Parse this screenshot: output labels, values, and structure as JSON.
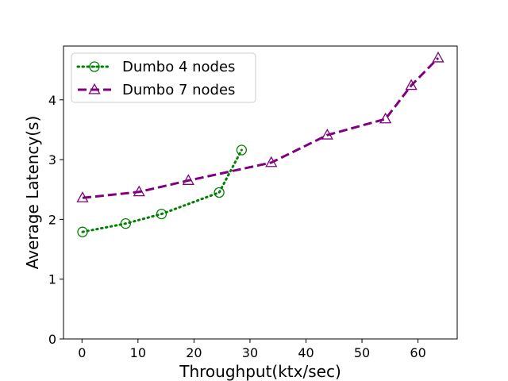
{
  "chart_data": {
    "type": "line",
    "xlabel": "Throughput(ktx/sec)",
    "ylabel": "Average Latency(s)",
    "xlim": [
      -3.3,
      67
    ],
    "ylim": [
      0,
      4.9
    ],
    "xticks": [
      0,
      10,
      20,
      30,
      40,
      50,
      60
    ],
    "yticks": [
      0,
      1,
      2,
      3,
      4
    ],
    "grid": false,
    "legend_position": "top-left",
    "series": [
      {
        "name": "Dumbo 4 nodes",
        "color": "#008000",
        "marker": "circle-dot",
        "linestyle": "dotted",
        "x": [
          0.1,
          7.8,
          14.2,
          24.5,
          28.5
        ],
        "y": [
          1.79,
          1.93,
          2.09,
          2.45,
          3.16
        ]
      },
      {
        "name": "Dumbo 7 nodes",
        "color": "#800080",
        "marker": "triangle",
        "linestyle": "dashed",
        "x": [
          0.1,
          10.2,
          19.0,
          33.8,
          43.8,
          54.2,
          58.8,
          63.6
        ],
        "y": [
          2.36,
          2.46,
          2.65,
          2.95,
          3.41,
          3.68,
          4.24,
          4.7
        ]
      }
    ]
  }
}
